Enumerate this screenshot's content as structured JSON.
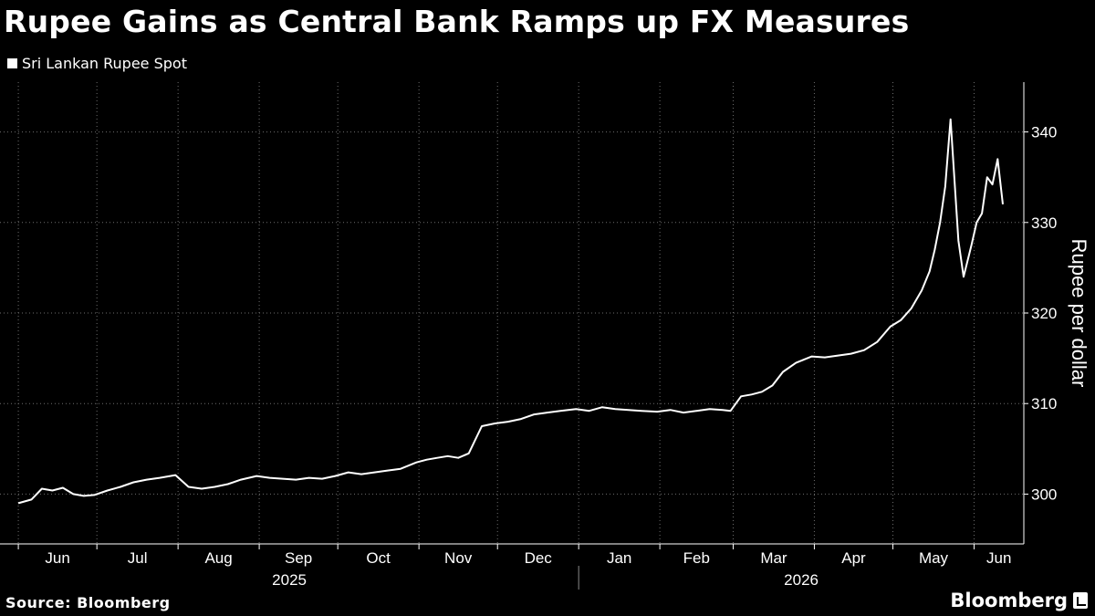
{
  "title": "Rupee Gains as Central Bank Ramps up FX Measures",
  "legend": {
    "label": "Sri Lankan Rupee Spot",
    "color": "#ffffff"
  },
  "source": "Source: Bloomberg",
  "brand": "Bloomberg",
  "chart_data": {
    "type": "line",
    "title": "Rupee Gains as Central Bank Ramps up FX Measures",
    "ylabel": "Rupee per dollar",
    "xlabel": "",
    "ylim": [
      294.5,
      345.5
    ],
    "yticks": [
      300,
      310,
      320,
      330,
      340
    ],
    "x_axis": {
      "months": [
        "Jun",
        "Jul",
        "Aug",
        "Sep",
        "Oct",
        "Nov",
        "Dec",
        "Jan",
        "Feb",
        "Mar",
        "Apr",
        "May",
        "Jun"
      ],
      "years": [
        "2025",
        "2026"
      ]
    },
    "grid": true,
    "legend_position": "top-left",
    "series": [
      {
        "name": "Sri Lankan Rupee Spot",
        "color": "#ffffff",
        "x": [
          "2025-06-01",
          "2025-06-06",
          "2025-06-10",
          "2025-06-14",
          "2025-06-18",
          "2025-06-22",
          "2025-06-26",
          "2025-06-30",
          "2025-07-05",
          "2025-07-10",
          "2025-07-15",
          "2025-07-20",
          "2025-07-25",
          "2025-07-31",
          "2025-08-05",
          "2025-08-10",
          "2025-08-15",
          "2025-08-20",
          "2025-08-25",
          "2025-08-31",
          "2025-09-05",
          "2025-09-10",
          "2025-09-15",
          "2025-09-20",
          "2025-09-25",
          "2025-09-30",
          "2025-10-05",
          "2025-10-10",
          "2025-10-15",
          "2025-10-20",
          "2025-10-25",
          "2025-10-31",
          "2025-11-04",
          "2025-11-08",
          "2025-11-12",
          "2025-11-16",
          "2025-11-20",
          "2025-11-25",
          "2025-11-30",
          "2025-12-05",
          "2025-12-10",
          "2025-12-15",
          "2025-12-20",
          "2025-12-25",
          "2025-12-31",
          "2026-01-05",
          "2026-01-10",
          "2026-01-15",
          "2026-01-20",
          "2026-01-25",
          "2026-01-31",
          "2026-02-05",
          "2026-02-10",
          "2026-02-15",
          "2026-02-20",
          "2026-02-25",
          "2026-02-28",
          "2026-03-04",
          "2026-03-08",
          "2026-03-12",
          "2026-03-16",
          "2026-03-20",
          "2026-03-25",
          "2026-03-31",
          "2026-04-05",
          "2026-04-10",
          "2026-04-15",
          "2026-04-20",
          "2026-04-25",
          "2026-04-30",
          "2026-05-04",
          "2026-05-08",
          "2026-05-12",
          "2026-05-15",
          "2026-05-17",
          "2026-05-19",
          "2026-05-21",
          "2026-05-23",
          "2026-05-26",
          "2026-05-28",
          "2026-05-31",
          "2026-06-02",
          "2026-06-04",
          "2026-06-06",
          "2026-06-08",
          "2026-06-10",
          "2026-06-12"
        ],
        "y": [
          299.0,
          299.4,
          300.6,
          300.4,
          300.7,
          300.0,
          299.8,
          299.9,
          300.4,
          300.8,
          301.3,
          301.6,
          301.8,
          302.1,
          300.8,
          300.6,
          300.8,
          301.1,
          301.6,
          302.0,
          301.8,
          301.7,
          301.6,
          301.8,
          301.7,
          302.0,
          302.4,
          302.2,
          302.4,
          302.6,
          302.8,
          303.5,
          303.8,
          304.0,
          304.2,
          304.0,
          304.5,
          307.5,
          307.8,
          308.0,
          308.3,
          308.8,
          309.0,
          309.2,
          309.4,
          309.2,
          309.6,
          309.4,
          309.3,
          309.2,
          309.1,
          309.3,
          309.0,
          309.2,
          309.4,
          309.3,
          309.2,
          310.8,
          311.0,
          311.3,
          312.0,
          313.5,
          314.5,
          315.2,
          315.1,
          315.3,
          315.5,
          315.9,
          316.8,
          318.5,
          319.2,
          320.5,
          322.5,
          324.6,
          327.0,
          330.0,
          334.0,
          341.4,
          328.0,
          324.0,
          327.5,
          330.0,
          331.0,
          335.0,
          334.2,
          337.0,
          332.0
        ]
      }
    ]
  }
}
